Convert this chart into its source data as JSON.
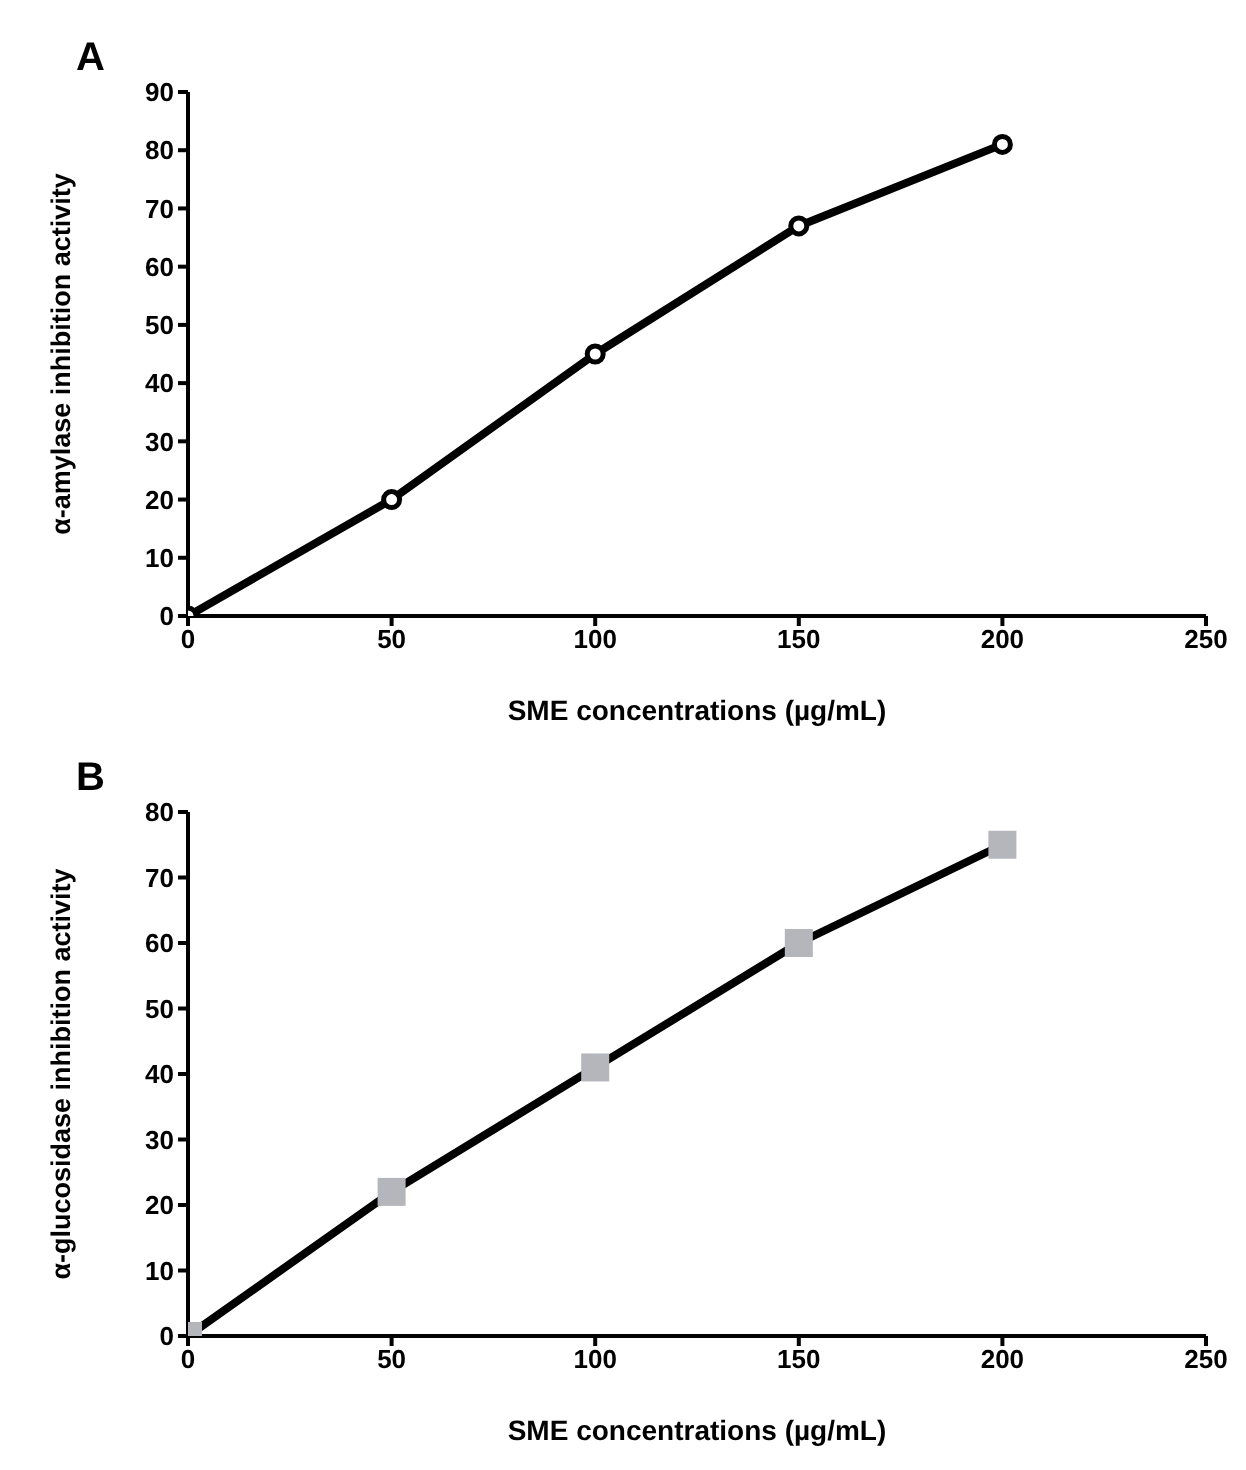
{
  "chart_data": [
    {
      "type": "line",
      "title": "A",
      "xlabel": "SME concentrations (µg/mL)",
      "ylabel": "α-amylase inhibition activity",
      "x": [
        0,
        50,
        100,
        150,
        200
      ],
      "series": [
        {
          "color": "#000000",
          "colors": [
            "#ffffff",
            "#ffffff",
            "#ffffff",
            "#ffffff",
            "#ffffff"
          ],
          "values": [
            0,
            20,
            45,
            67,
            81
          ]
        }
      ],
      "xlim": [
        0,
        250
      ],
      "xticks": [
        0,
        50,
        100,
        150,
        200,
        250
      ],
      "ylim": [
        0,
        90
      ],
      "yticks": [
        0,
        10,
        20,
        30,
        40,
        50,
        60,
        70,
        80,
        90
      ],
      "grid": false,
      "legend": false,
      "marker": "circle",
      "line_style": "solid"
    },
    {
      "type": "line",
      "title": "B",
      "xlabel": "SME concentrations (µg/mL)",
      "ylabel": "α-glucosidase inhibition activity",
      "x": [
        0,
        50,
        100,
        150,
        200
      ],
      "series": [
        {
          "color": "#000000",
          "colors": [
            "#b4b6bb",
            "#b4b6bb",
            "#b4b6bb",
            "#b4b6bb",
            "#b4b6bb"
          ],
          "values": [
            0,
            22,
            41,
            60,
            75
          ]
        }
      ],
      "xlim": [
        0,
        250
      ],
      "xticks": [
        0,
        50,
        100,
        150,
        200,
        250
      ],
      "ylim": [
        0,
        80
      ],
      "yticks": [
        0,
        10,
        20,
        30,
        40,
        50,
        60,
        70,
        80
      ],
      "grid": false,
      "legend": false,
      "marker": "square",
      "line_style": "solid"
    }
  ]
}
